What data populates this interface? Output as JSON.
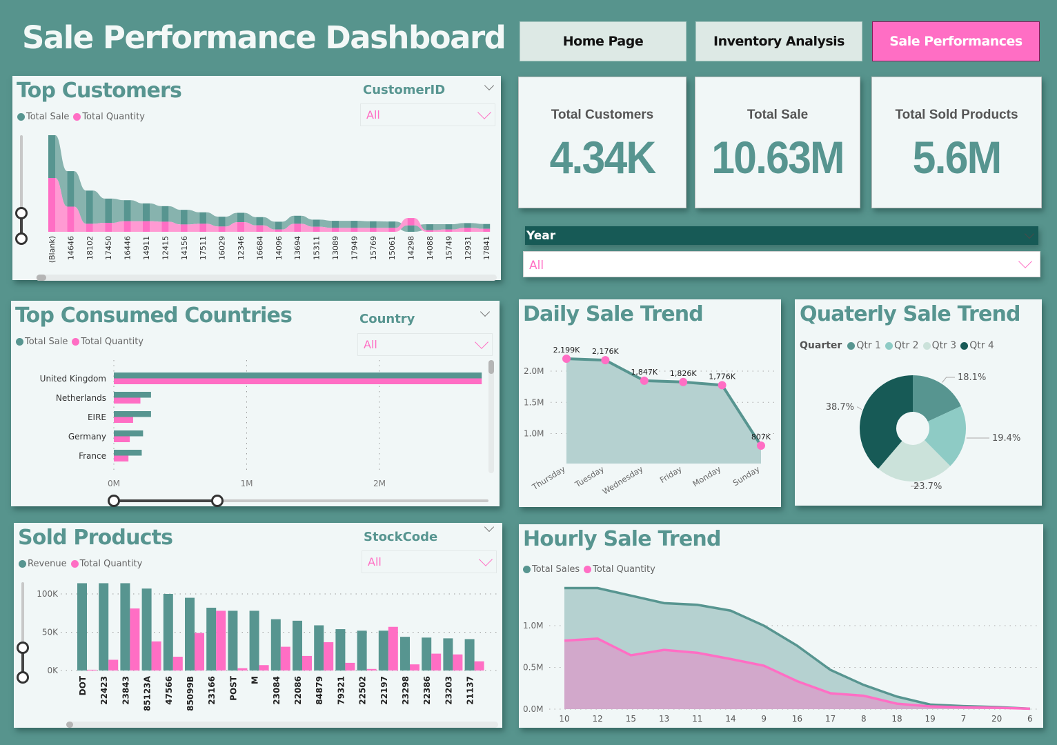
{
  "header": {
    "title": "Sale Performance Dashboard",
    "nav": [
      {
        "label": "Home Page",
        "active": false
      },
      {
        "label": "Inventory Analysis",
        "active": false
      },
      {
        "label": "Sale Performances",
        "active": true
      }
    ]
  },
  "colors": {
    "background": "#57948d",
    "panel": "#f1f7f7",
    "teal": "#579590",
    "pink": "#ff6ec4",
    "dark_teal": "#175a56",
    "area_teal": "#b5d1d0",
    "area_pink": "#d2a8cb"
  },
  "kpis": [
    {
      "label": "Total Customers",
      "value": "4.34K"
    },
    {
      "label": "Total Sale",
      "value": "10.63M"
    },
    {
      "label": "Total Sold Products",
      "value": "5.6M"
    }
  ],
  "year_slicer": {
    "label": "Year",
    "value": "All"
  },
  "top_customers": {
    "title": "Top Customers",
    "legend": [
      "Total Sale",
      "Total Quantity"
    ],
    "slicer": {
      "label": "CustomerID",
      "value": "All"
    }
  },
  "top_countries": {
    "title": "Top Consumed Countries",
    "legend": [
      "Total Sale",
      "Total Quantity"
    ],
    "slicer": {
      "label": "Country",
      "value": "All"
    }
  },
  "sold_products": {
    "title": "Sold Products",
    "legend": [
      "Revenue",
      "Total Quantity"
    ],
    "slicer": {
      "label": "StockCode",
      "value": "All"
    }
  },
  "daily": {
    "title": "Daily Sale Trend"
  },
  "quarterly": {
    "title": "Quaterly Sale Trend",
    "legend_title": "Quarter"
  },
  "hourly": {
    "title": "Hourly Sale Trend",
    "legend": [
      "Total Sales",
      "Total Quantity"
    ]
  },
  "chart_data": [
    {
      "id": "top_customers",
      "type": "ribbon",
      "title": "Top Customers",
      "note": "relative values (no axis shown)",
      "categories": [
        "(Blank)",
        "14646",
        "18102",
        "17450",
        "16446",
        "14911",
        "12415",
        "14156",
        "17511",
        "16029",
        "12346",
        "16684",
        "14096",
        "13694",
        "15311",
        "13089",
        "17949",
        "15769",
        "15061",
        "14298",
        "14088",
        "15749",
        "12931",
        "17841"
      ],
      "series": [
        {
          "name": "Total Sale",
          "values": [
            187,
            155,
            145,
            106,
            92,
            78,
            68,
            64,
            50,
            43,
            41,
            36,
            34,
            35,
            31,
            31,
            31,
            29,
            28,
            28,
            26,
            23,
            21,
            21
          ]
        },
        {
          "name": "Total Quantity",
          "values": [
            235,
            110,
            35,
            39,
            46,
            46,
            44,
            32,
            35,
            23,
            42,
            28,
            10,
            35,
            22,
            17,
            17,
            17,
            17,
            32,
            7,
            10,
            17,
            13
          ]
        }
      ]
    },
    {
      "id": "top_countries",
      "type": "bar",
      "orientation": "horizontal",
      "title": "Top Consumed Countries",
      "categories": [
        "United Kingdom",
        "Netherlands",
        "EIRE",
        "Germany",
        "France"
      ],
      "series": [
        {
          "name": "Total Sale",
          "values": [
            2.77,
            0.28,
            0.28,
            0.22,
            0.21
          ]
        },
        {
          "name": "Total Quantity",
          "values": [
            2.77,
            0.2,
            0.145,
            0.12,
            0.11
          ]
        }
      ],
      "unit": "M",
      "xticks": [
        "0M",
        "1M",
        "2M"
      ],
      "xlim": [
        0,
        2.8
      ]
    },
    {
      "id": "sold_products",
      "type": "bar",
      "title": "Sold Products",
      "categories": [
        "DOT",
        "22423",
        "23843",
        "85123A",
        "47566",
        "85099B",
        "23166",
        "POST",
        "M",
        "23084",
        "22086",
        "84879",
        "79321",
        "22502",
        "22197",
        "23298",
        "22386",
        "23203",
        "21137"
      ],
      "series": [
        {
          "name": "Revenue",
          "values": [
            114,
            114,
            114,
            107,
            100,
            95,
            82,
            78,
            78,
            67,
            65,
            59,
            54,
            52,
            52,
            44,
            43,
            42,
            41
          ]
        },
        {
          "name": "Total Quantity",
          "values": [
            1,
            14,
            81,
            38,
            18,
            49,
            78,
            3,
            7,
            31,
            19,
            37,
            10,
            2,
            57,
            8,
            22,
            21,
            12
          ]
        }
      ],
      "unit": "K",
      "yticks": [
        "0K",
        "50K",
        "100K"
      ],
      "ylim": [
        0,
        114
      ]
    },
    {
      "id": "daily",
      "type": "area",
      "title": "Daily Sale Trend",
      "categories": [
        "Thursday",
        "Tuesday",
        "Wednesday",
        "Friday",
        "Monday",
        "Sunday"
      ],
      "values": [
        2.199,
        2.176,
        1.847,
        1.826,
        1.776,
        0.807
      ],
      "labels": [
        "2,199K",
        "2,176K",
        "1,847K",
        "1,826K",
        "1,776K",
        "807K"
      ],
      "unit": "M",
      "yticks": [
        "1.0M",
        "1.5M",
        "2.0M"
      ],
      "ylim": [
        0.52,
        2.35
      ]
    },
    {
      "id": "quarterly",
      "type": "pie",
      "title": "Quaterly Sale Trend",
      "categories": [
        "Qtr 1",
        "Qtr 2",
        "Qtr 3",
        "Qtr 4"
      ],
      "values": [
        18.1,
        19.4,
        23.7,
        38.7
      ],
      "labels": [
        "18.1%",
        "19.4%",
        "23.7%",
        "38.7%"
      ],
      "colors": [
        "#579590",
        "#8ecbc5",
        "#cbe2da",
        "#175a56"
      ],
      "donut": true
    },
    {
      "id": "hourly",
      "type": "area",
      "title": "Hourly Sale Trend",
      "categories": [
        "10",
        "12",
        "15",
        "13",
        "11",
        "14",
        "9",
        "16",
        "17",
        "8",
        "18",
        "19",
        "7",
        "20",
        "6"
      ],
      "series": [
        {
          "name": "Total Sales",
          "values": [
            1.45,
            1.45,
            1.36,
            1.27,
            1.25,
            1.18,
            1.0,
            0.76,
            0.47,
            0.29,
            0.15,
            0.055,
            0.036,
            0.025,
            0.005
          ]
        },
        {
          "name": "Total Quantity",
          "values": [
            0.82,
            0.845,
            0.645,
            0.71,
            0.675,
            0.6,
            0.52,
            0.335,
            0.19,
            0.16,
            0.065,
            0.033,
            0.022,
            0.017,
            0.005
          ]
        }
      ],
      "unit": "M",
      "yticks": [
        "0.0M",
        "0.5M",
        "1.0M"
      ],
      "ylim": [
        0,
        1.45
      ]
    }
  ]
}
